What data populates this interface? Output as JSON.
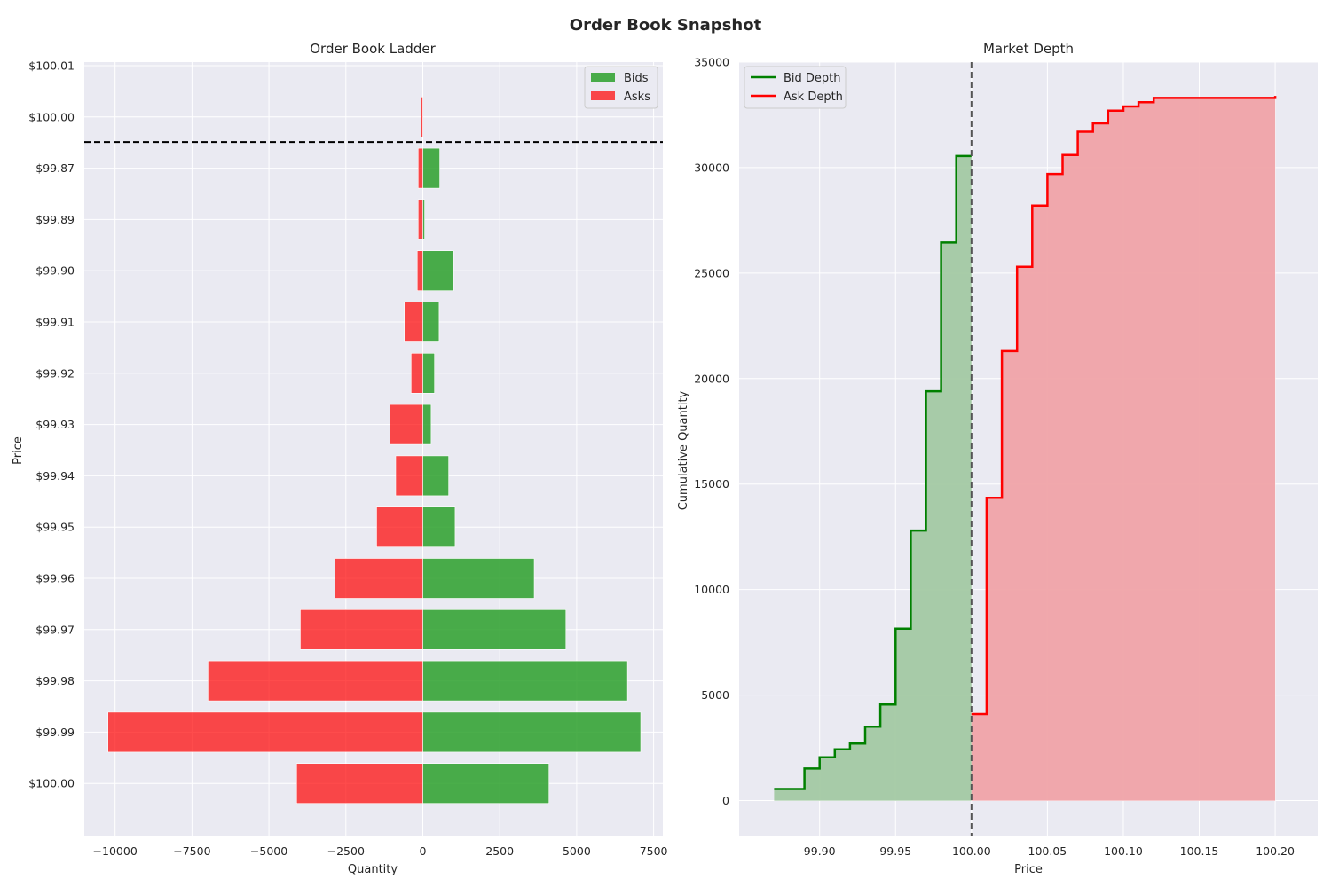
{
  "figure": {
    "title": "Order Book Snapshot"
  },
  "chart_data": [
    {
      "type": "bar",
      "orientation": "horizontal",
      "title": "Order Book Ladder",
      "xlabel": "Quantity",
      "ylabel": "Price",
      "xlim": [
        -11000,
        7800
      ],
      "x_ticks": [
        -10000,
        -7500,
        -5000,
        -2500,
        0,
        2500,
        5000,
        7500
      ],
      "x_tick_labels": [
        "−10000",
        "−7500",
        "−5000",
        "−2500",
        "0",
        "2500",
        "5000",
        "7500"
      ],
      "categories": [
        "$100.01",
        "$100.00",
        "$99.87",
        "$99.89",
        "$99.90",
        "$99.91",
        "$99.92",
        "$99.93",
        "$99.94",
        "$99.95",
        "$99.96",
        "$99.97",
        "$99.98",
        "$99.99",
        "$100.00"
      ],
      "mid_price_line_between": [
        "$100.00",
        "$99.87"
      ],
      "legend": {
        "entries": [
          "Bids",
          "Asks"
        ],
        "placement": "upper right"
      },
      "grid": true,
      "series": [
        {
          "name": "Bids",
          "color": "#2ca02c",
          "values": [
            0,
            0,
            550,
            60,
            1000,
            530,
            380,
            270,
            840,
            1050,
            3620,
            4650,
            6650,
            7080,
            4100
          ]
        },
        {
          "name": "Asks",
          "color": "#ff0000",
          "values": [
            0,
            -60,
            -150,
            -150,
            -180,
            -600,
            -380,
            -1070,
            -880,
            -1500,
            -2850,
            -3980,
            -6980,
            -10230,
            -4100
          ]
        }
      ]
    },
    {
      "type": "area",
      "step": true,
      "title": "Market Depth",
      "xlabel": "Price",
      "ylabel": "Cumulative Quantity",
      "xlim": [
        99.847,
        100.228
      ],
      "ylim": [
        -1700,
        35000
      ],
      "x_ticks": [
        99.9,
        99.95,
        100.0,
        100.05,
        100.1,
        100.15,
        100.2
      ],
      "x_tick_labels": [
        "99.90",
        "99.95",
        "100.00",
        "100.05",
        "100.10",
        "100.15",
        "100.20"
      ],
      "y_ticks": [
        0,
        5000,
        10000,
        15000,
        20000,
        25000,
        30000,
        35000
      ],
      "y_tick_labels": [
        "0",
        "5000",
        "10000",
        "15000",
        "20000",
        "25000",
        "30000",
        "35000"
      ],
      "mid_price_line": 100.0,
      "legend": {
        "entries": [
          "Bid Depth",
          "Ask Depth"
        ],
        "placement": "upper left"
      },
      "grid": true,
      "series": [
        {
          "name": "Bid Depth",
          "color": "#008000",
          "fill": "#a3c9a3",
          "x": [
            99.87,
            99.89,
            99.9,
            99.91,
            99.92,
            99.93,
            99.94,
            99.95,
            99.96,
            99.97,
            99.98,
            99.99,
            100.0
          ],
          "y": [
            550,
            1520,
            2050,
            2430,
            2700,
            3500,
            4550,
            8150,
            12800,
            19400,
            26450,
            30550,
            30550
          ]
        },
        {
          "name": "Ask Depth",
          "color": "#ff0000",
          "fill": "#f0a3a8",
          "x": [
            100.0,
            100.01,
            100.02,
            100.03,
            100.04,
            100.05,
            100.06,
            100.07,
            100.08,
            100.09,
            100.1,
            100.11,
            100.12,
            100.2
          ],
          "y": [
            4100,
            14350,
            21300,
            25300,
            28200,
            29700,
            30600,
            31700,
            32100,
            32700,
            32900,
            33100,
            33300,
            33400
          ]
        }
      ]
    }
  ]
}
